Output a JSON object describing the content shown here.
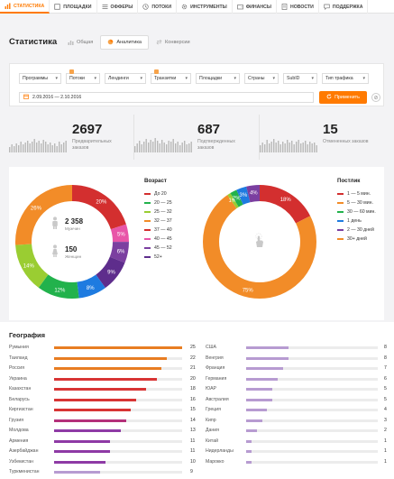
{
  "nav": {
    "items": [
      {
        "label": "СТАТИСТИКА",
        "icon": "chart-bars-icon",
        "active": true
      },
      {
        "label": "ПЛОЩАДКИ",
        "icon": "square-icon",
        "active": false
      },
      {
        "label": "ОФФЕРЫ",
        "icon": "list-icon",
        "active": false
      },
      {
        "label": "ПОТОКИ",
        "icon": "clock-icon",
        "active": false
      },
      {
        "label": "ИНСТРУМЕНТЫ",
        "icon": "gear-icon",
        "active": false
      },
      {
        "label": "ФИНАНСЫ",
        "icon": "wallet-icon",
        "active": false
      },
      {
        "label": "НОВОСТИ",
        "icon": "document-icon",
        "active": false
      },
      {
        "label": "ПОДДЕРЖКА",
        "icon": "chat-icon",
        "active": false
      }
    ]
  },
  "header": {
    "title": "Статистика",
    "tabs": [
      {
        "label": "Общая",
        "icon": "bar-chart-icon",
        "active": false
      },
      {
        "label": "Аналитика",
        "icon": "pie-chart-icon",
        "active": true
      },
      {
        "label": "Конверсии",
        "icon": "swap-icon",
        "active": false
      }
    ]
  },
  "filters": {
    "selects": [
      {
        "label": "Программы",
        "badge": false
      },
      {
        "label": "Потоки",
        "badge": true
      },
      {
        "label": "Лендинги",
        "badge": false
      },
      {
        "label": "Транзитки",
        "badge": true
      },
      {
        "label": "Площадки",
        "badge": false
      },
      {
        "label": "Страны",
        "badge": false
      },
      {
        "label": "SubID",
        "badge": false
      },
      {
        "label": "Тип трафика",
        "badge": false
      }
    ],
    "date_range": "2.09.2016 — 2.10.2016",
    "apply_label": "Применить"
  },
  "stats": [
    {
      "value": "2697",
      "label": "Предварительных заказов"
    },
    {
      "value": "687",
      "label": "Подтвержденных заказов"
    },
    {
      "value": "15",
      "label": "Отмененных заказов"
    }
  ],
  "chart_data": [
    {
      "type": "pie",
      "title": "Возраст",
      "center": {
        "value1": "2 358",
        "label1": "Мужчин",
        "value2": "150",
        "label2": "Женщин"
      },
      "categories": [
        "До 20",
        "20 — 25",
        "25 — 32",
        "32 — 37",
        "37 — 40",
        "40 — 45",
        "45 — 52",
        "52+"
      ],
      "slices": [
        {
          "label": "37 — 40",
          "value": 20,
          "text": "20%",
          "color": "#d32f2f"
        },
        {
          "label": "40 — 45",
          "value": 5,
          "text": "5%",
          "color": "#e855a8"
        },
        {
          "label": "45 — 52",
          "value": 6,
          "text": "6%",
          "color": "#7b3fa0"
        },
        {
          "label": "52+",
          "value": 9,
          "text": "9%",
          "color": "#5e2d8c"
        },
        {
          "label": "До 20",
          "value": 8,
          "text": "8%",
          "color": "#1e7be0"
        },
        {
          "label": "20 — 25",
          "value": 12,
          "text": "12%",
          "color": "#22b24c"
        },
        {
          "label": "25 — 32",
          "value": 14,
          "text": "14%",
          "color": "#9acd32"
        },
        {
          "label": "32 — 37",
          "value": 26,
          "text": "26%",
          "color": "#f28c28"
        }
      ],
      "legend_colors": [
        "#d32f2f",
        "#22b24c",
        "#9acd32",
        "#f28c28",
        "#d32f2f",
        "#e855a8",
        "#7b3fa0",
        "#5e2d8c"
      ]
    },
    {
      "type": "pie",
      "title": "Постлик",
      "categories": [
        "1 — 5 мин.",
        "5 — 30 мин.",
        "30 — 60 мин.",
        "1 день",
        "2 — 30 дней",
        "30+ дней"
      ],
      "slices": [
        {
          "label": "1 — 5 мин.",
          "value": 18,
          "text": "18%",
          "color": "#d32f2f"
        },
        {
          "label": "30+ дней",
          "value": 75,
          "text": "75%",
          "color": "#f28c28"
        },
        {
          "label": "5 — 30 мин.",
          "value": 1,
          "text": "1%",
          "color": "#9acd32"
        },
        {
          "label": "30 — 60 мин.",
          "value": 2,
          "text": "2%",
          "color": "#22b24c"
        },
        {
          "label": "1 день",
          "value": 3,
          "text": "3%",
          "color": "#1e7be0"
        },
        {
          "label": "2 — 30 дней",
          "value": 4,
          "text": "4%",
          "color": "#7b3fa0"
        }
      ],
      "legend_colors": [
        "#d32f2f",
        "#f28c28",
        "#22b24c",
        "#1e7be0",
        "#7b3fa0",
        "#f28c28"
      ]
    },
    {
      "type": "bar",
      "title": "География",
      "orientation": "horizontal",
      "bar_color": "#e87d22",
      "series_left": [
        {
          "name": "Румыния",
          "value": 25,
          "color": "#e87d22"
        },
        {
          "name": "Таиланд",
          "value": 22,
          "color": "#e87d22"
        },
        {
          "name": "Россия",
          "value": 21,
          "color": "#e87d22"
        },
        {
          "name": "Украина",
          "value": 20,
          "color": "#d83434"
        },
        {
          "name": "Казахстан",
          "value": 18,
          "color": "#d83434"
        },
        {
          "name": "Беларусь",
          "value": 16,
          "color": "#d83434"
        },
        {
          "name": "Киргизстан",
          "value": 15,
          "color": "#d83434"
        },
        {
          "name": "Грузия",
          "value": 14,
          "color": "#b4307a"
        },
        {
          "name": "Молдова",
          "value": 13,
          "color": "#8e3aa5"
        },
        {
          "name": "Армения",
          "value": 11,
          "color": "#8e3aa5"
        },
        {
          "name": "Азербайджан",
          "value": 11,
          "color": "#8e3aa5"
        },
        {
          "name": "Узбекистан",
          "value": 10,
          "color": "#8e3aa5"
        },
        {
          "name": "Туркменистан",
          "value": 9,
          "color": "#b79bd1"
        }
      ],
      "series_right": [
        {
          "name": "США",
          "value": 8,
          "color": "#b79bd1"
        },
        {
          "name": "Венгрия",
          "value": 8,
          "color": "#b79bd1"
        },
        {
          "name": "Франция",
          "value": 7,
          "color": "#b79bd1"
        },
        {
          "name": "Германия",
          "value": 6,
          "color": "#b79bd1"
        },
        {
          "name": "ЮАР",
          "value": 5,
          "color": "#b79bd1"
        },
        {
          "name": "Австралия",
          "value": 5,
          "color": "#b79bd1"
        },
        {
          "name": "Греция",
          "value": 4,
          "color": "#b79bd1"
        },
        {
          "name": "Кипр",
          "value": 3,
          "color": "#b79bd1"
        },
        {
          "name": "Дания",
          "value": 2,
          "color": "#b79bd1"
        },
        {
          "name": "Китай",
          "value": 1,
          "color": "#b79bd1"
        },
        {
          "name": "Нидерланды",
          "value": 1,
          "color": "#b79bd1"
        },
        {
          "name": "Марокко",
          "value": 1,
          "color": "#b79bd1"
        }
      ],
      "xlim": [
        0,
        25
      ]
    }
  ],
  "colors": {
    "accent": "#ff7a00"
  }
}
